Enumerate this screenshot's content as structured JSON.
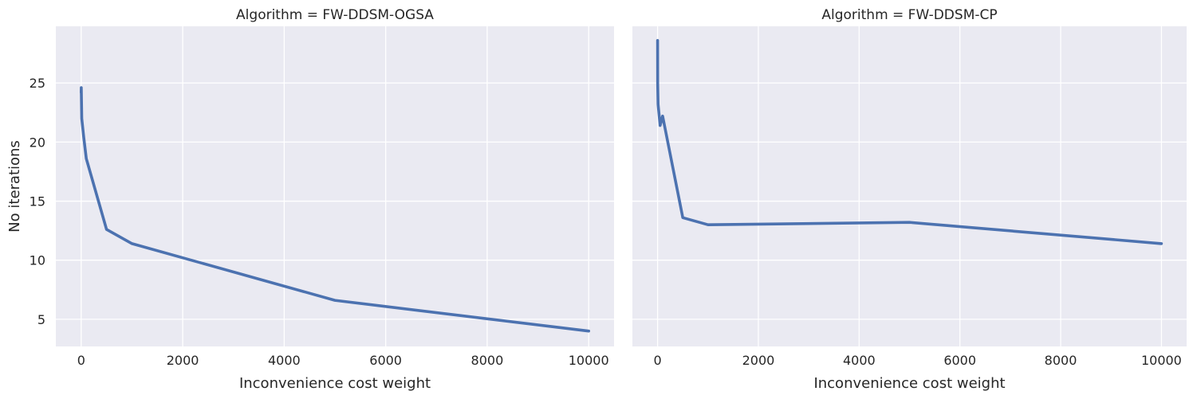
{
  "style": {
    "panel_bg": "#eaeaf2",
    "grid_color": "#ffffff",
    "line_color": "#4c72b0"
  },
  "chart_data": [
    {
      "type": "line",
      "title": "Algorithm = FW-DDSM-OGSA",
      "xlabel": "Inconvenience cost weight",
      "ylabel": "No iterations",
      "xlim": [
        -500,
        10500
      ],
      "ylim": [
        2.7,
        29.8
      ],
      "xticks": [
        0,
        2000,
        4000,
        6000,
        8000,
        10000
      ],
      "yticks": [
        5,
        10,
        15,
        20,
        25
      ],
      "grid": true,
      "x": [
        0,
        1,
        10,
        50,
        100,
        500,
        1000,
        5000,
        10000
      ],
      "y": [
        24.2,
        24.6,
        22.0,
        20.4,
        18.6,
        12.6,
        11.4,
        6.6,
        4.0
      ]
    },
    {
      "type": "line",
      "title": "Algorithm = FW-DDSM-CP",
      "xlabel": "Inconvenience cost weight",
      "ylabel": "",
      "xlim": [
        -500,
        10500
      ],
      "ylim": [
        2.7,
        29.8
      ],
      "xticks": [
        0,
        2000,
        4000,
        6000,
        8000,
        10000
      ],
      "yticks": [
        5,
        10,
        15,
        20,
        25
      ],
      "grid": true,
      "x": [
        0,
        1,
        10,
        50,
        100,
        500,
        1000,
        5000,
        10000
      ],
      "y": [
        28.6,
        25.0,
        23.2,
        21.4,
        22.2,
        13.6,
        13.0,
        13.2,
        11.4
      ]
    }
  ]
}
